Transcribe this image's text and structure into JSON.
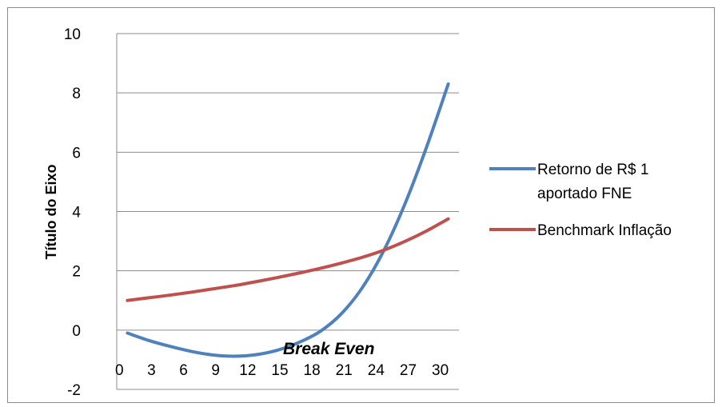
{
  "chart_data": {
    "type": "line",
    "title": "",
    "xlabel": "",
    "ylabel": "Título do Eixo",
    "ylim": [
      -2,
      10
    ],
    "yticks": [
      "-2",
      "0",
      "2",
      "4",
      "6",
      "8",
      "10"
    ],
    "xticks": [
      "0",
      "3",
      "6",
      "9",
      "12",
      "15",
      "18",
      "21",
      "24",
      "27",
      "30"
    ],
    "grid": "horizontal",
    "legend": "right",
    "annotation": "Break Even",
    "series": [
      {
        "name": "Retorno de R$ 1 aportado FNE",
        "color": "#4f81bd",
        "x": [
          1,
          3,
          5,
          7,
          9,
          11,
          13,
          15,
          17,
          19,
          21,
          23,
          25,
          27,
          29,
          31
        ],
        "values": [
          -0.1,
          -0.35,
          -0.55,
          -0.72,
          -0.84,
          -0.88,
          -0.83,
          -0.68,
          -0.42,
          -0.05,
          0.55,
          1.45,
          2.7,
          4.3,
          6.2,
          8.3
        ]
      },
      {
        "name": "Benchmark Inflação",
        "color": "#c0504d",
        "x": [
          1,
          3,
          5,
          7,
          9,
          11,
          13,
          15,
          17,
          19,
          21,
          23,
          25,
          27,
          29,
          31
        ],
        "values": [
          1.0,
          1.09,
          1.18,
          1.28,
          1.39,
          1.5,
          1.63,
          1.77,
          1.92,
          2.08,
          2.26,
          2.46,
          2.7,
          3.0,
          3.35,
          3.75
        ]
      }
    ]
  }
}
